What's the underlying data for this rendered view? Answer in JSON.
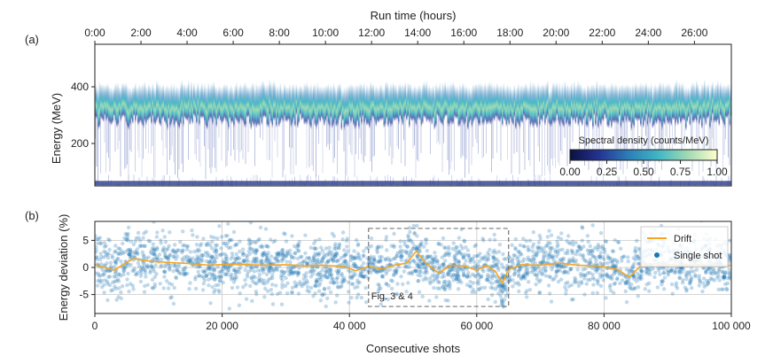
{
  "chart_data": [
    {
      "panel": "(a)",
      "type": "heatmap",
      "top_axis_label": "Run time (hours)",
      "top_ticks": [
        "0:00",
        "2:00",
        "4:00",
        "6:00",
        "8:00",
        "10:00",
        "12:00",
        "14:00",
        "16:00",
        "18:00",
        "20:00",
        "22:00",
        "24:00",
        "26:00"
      ],
      "top_tick_hours": [
        0,
        2,
        4,
        6,
        8,
        10,
        12,
        14,
        16,
        18,
        20,
        22,
        24,
        26
      ],
      "hours_span": 27.6,
      "ylabel": "Energy (MeV)",
      "yticks": [
        200,
        400
      ],
      "ylim": [
        50,
        550
      ],
      "band_center_MeV": 350,
      "colorbar": {
        "label": "Spectral density (counts/MeV)",
        "ticks": [
          "0.00",
          "0.25",
          "0.50",
          "0.75",
          "1.00"
        ],
        "colors": [
          "#0b1040",
          "#253494",
          "#2c7fb8",
          "#41b6c4",
          "#a1dab4",
          "#ffffcc"
        ]
      }
    },
    {
      "panel": "(b)",
      "type": "scatter",
      "xlabel": "Consecutive shots",
      "ylabel": "Energy deviation (%)",
      "xlim": [
        0,
        100000
      ],
      "ylim": [
        -8.5,
        8.5
      ],
      "xticks": [
        "0",
        "20 000",
        "40 000",
        "60 000",
        "80 000",
        "100 000"
      ],
      "xtick_values": [
        0,
        20000,
        40000,
        60000,
        80000,
        100000
      ],
      "yticks": [
        "5",
        "0",
        "-5"
      ],
      "ytick_values": [
        5,
        0,
        -5
      ],
      "series": [
        {
          "name": "Drift",
          "color": "#f5a623",
          "x": [
            0,
            3000,
            6000,
            9000,
            12000,
            15000,
            18000,
            21000,
            24000,
            27000,
            30000,
            33000,
            36000,
            39000,
            41000,
            43000,
            45000,
            47000,
            49000,
            50500,
            52000,
            54000,
            56000,
            58000,
            60000,
            61500,
            63000,
            64000,
            65000,
            67000,
            70000,
            73000,
            76000,
            79000,
            82000,
            84000,
            86000,
            89000,
            92000,
            95000,
            98000,
            100000
          ],
          "y": [
            0.5,
            -0.5,
            1.6,
            1.1,
            0.9,
            0.7,
            0.4,
            0.6,
            0.5,
            0.4,
            0.5,
            0.3,
            0.4,
            0.2,
            -0.6,
            0.2,
            -0.3,
            0.4,
            0.8,
            3.0,
            0.8,
            -1.0,
            0.4,
            0.3,
            -0.5,
            0.4,
            -0.8,
            -2.9,
            -0.4,
            0.5,
            0.4,
            0.8,
            0.4,
            0.3,
            -0.3,
            -1.8,
            0.6,
            0.7,
            0.4,
            0.5,
            0.3,
            0.4
          ]
        },
        {
          "name": "Single shot",
          "color": "#1f77b4",
          "spread": 2.6
        }
      ],
      "annotation": {
        "label": "Fig. 3 & 4",
        "x_range": [
          43000,
          65000
        ],
        "y_range": [
          -7.2,
          7.2
        ]
      },
      "legend_placement": "right"
    }
  ]
}
